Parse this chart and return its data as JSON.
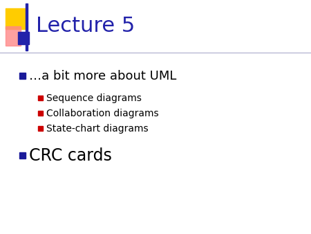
{
  "title": "Lecture 5",
  "title_color": "#2222aa",
  "title_fontsize": 22,
  "background_color": "#ffffff",
  "header_line_color": "#aaaacc",
  "bullet1_text": "…a bit more about UML",
  "bullet1_color": "#000000",
  "bullet1_fontsize": 13,
  "bullet1_marker_color": "#1a1a99",
  "sub_bullets": [
    "Sequence diagrams",
    "Collaboration diagrams",
    "State-chart diagrams"
  ],
  "sub_bullet_color": "#000000",
  "sub_bullet_fontsize": 10,
  "sub_bullet_marker_color": "#cc0000",
  "bullet2_text": "CRC cards",
  "bullet2_color": "#000000",
  "bullet2_fontsize": 17,
  "bullet2_marker_color": "#1a1a99",
  "logo_yellow_color": "#ffcc00",
  "logo_red_color": "#ff8888",
  "logo_blue_color": "#2222aa"
}
